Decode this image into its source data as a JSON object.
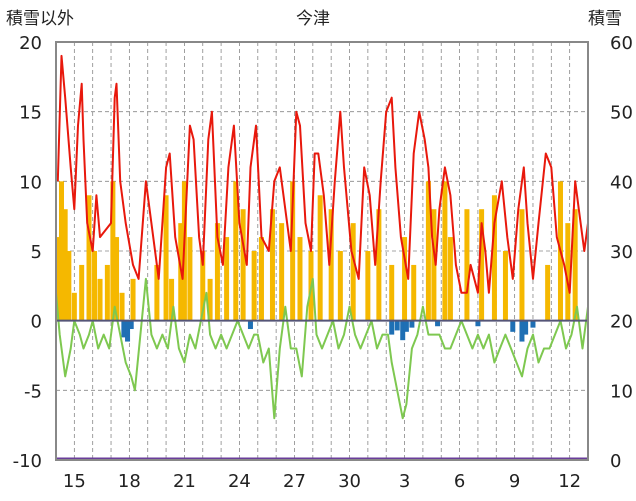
{
  "header": {
    "left_axis_label": "積雪以外",
    "title": "今津",
    "right_axis_label": "積雪"
  },
  "chart_data": {
    "type": "line",
    "title": "今津",
    "ylabel_left": "積雪以外",
    "ylabel_right": "積雪",
    "ylim_left": [
      -10,
      20
    ],
    "ylim_right": [
      0,
      60
    ],
    "yticks_left": [
      "20",
      "15",
      "10",
      "5",
      "0",
      "-5",
      "-10"
    ],
    "yticks_right": [
      "60",
      "50",
      "40",
      "30",
      "20",
      "10",
      "0"
    ],
    "xticks": [
      "15",
      "18",
      "21",
      "24",
      "27",
      "30",
      "3",
      "6",
      "9",
      "12"
    ],
    "grid": "dashed",
    "day_count": 29,
    "colors": {
      "temperature": "#e8180c",
      "precip_snow": "#f5b800",
      "temperature_other": "#7ec850",
      "snow_depth_bar": "#1f6fb4",
      "baseline": "#555577",
      "bottom_line": "#6a3d9a"
    },
    "series": [
      {
        "name": "",
        "axis": "left",
        "role": "yellow-bars",
        "color": "#f5b800",
        "values": [
          [
            0.1,
            6
          ],
          [
            0.3,
            10
          ],
          [
            0.5,
            8
          ],
          [
            0.7,
            5
          ],
          [
            1.0,
            2
          ],
          [
            1.4,
            4
          ],
          [
            1.8,
            9
          ],
          [
            2.1,
            5
          ],
          [
            2.4,
            3
          ],
          [
            2.8,
            4
          ],
          [
            3.1,
            10
          ],
          [
            3.3,
            6
          ],
          [
            3.6,
            2
          ],
          [
            4.2,
            3
          ],
          [
            5.5,
            4
          ],
          [
            6.0,
            9
          ],
          [
            6.3,
            3
          ],
          [
            6.8,
            7
          ],
          [
            7.0,
            10
          ],
          [
            7.3,
            6
          ],
          [
            8.0,
            5
          ],
          [
            8.4,
            3
          ],
          [
            8.8,
            7
          ],
          [
            9.3,
            6
          ],
          [
            9.8,
            10
          ],
          [
            10.2,
            8
          ],
          [
            10.8,
            5
          ],
          [
            11.2,
            6
          ],
          [
            11.8,
            8
          ],
          [
            12.3,
            7
          ],
          [
            12.9,
            10
          ],
          [
            13.3,
            6
          ],
          [
            13.9,
            5
          ],
          [
            14.4,
            9
          ],
          [
            15.0,
            8
          ],
          [
            15.5,
            5
          ],
          [
            16.2,
            7
          ],
          [
            17.0,
            5
          ],
          [
            17.6,
            8
          ],
          [
            18.3,
            4
          ],
          [
            19.0,
            6
          ],
          [
            19.5,
            4
          ],
          [
            20.3,
            10
          ],
          [
            20.6,
            8
          ],
          [
            21.2,
            10
          ],
          [
            21.5,
            6
          ],
          [
            22.4,
            8
          ],
          [
            23.2,
            8
          ],
          [
            23.9,
            9
          ],
          [
            24.5,
            5
          ],
          [
            25.4,
            8
          ],
          [
            26.8,
            4
          ],
          [
            27.5,
            10
          ],
          [
            27.9,
            7
          ],
          [
            28.3,
            8
          ]
        ]
      },
      {
        "name": "",
        "axis": "left",
        "role": "blue-bars",
        "color": "#1f6fb4",
        "values": [
          [
            3.7,
            -1.2
          ],
          [
            3.9,
            -1.5
          ],
          [
            4.1,
            -0.6
          ],
          [
            10.6,
            -0.6
          ],
          [
            18.3,
            -1.0
          ],
          [
            18.6,
            -0.7
          ],
          [
            18.9,
            -1.4
          ],
          [
            19.1,
            -0.8
          ],
          [
            19.4,
            -0.5
          ],
          [
            20.8,
            -0.4
          ],
          [
            23.0,
            -0.4
          ],
          [
            24.9,
            -0.8
          ],
          [
            25.4,
            -1.5
          ],
          [
            25.6,
            -1.0
          ],
          [
            26.0,
            -0.5
          ]
        ]
      },
      {
        "name": "",
        "axis": "left",
        "role": "red-line",
        "color": "#e8180c",
        "values": [
          [
            0.1,
            10
          ],
          [
            0.3,
            19
          ],
          [
            0.5,
            16
          ],
          [
            0.8,
            11
          ],
          [
            1.0,
            8
          ],
          [
            1.2,
            14
          ],
          [
            1.4,
            17
          ],
          [
            1.5,
            13
          ],
          [
            1.7,
            7
          ],
          [
            2.0,
            5
          ],
          [
            2.2,
            9
          ],
          [
            2.4,
            6
          ],
          [
            3.0,
            7
          ],
          [
            3.2,
            16
          ],
          [
            3.3,
            17
          ],
          [
            3.5,
            10
          ],
          [
            3.8,
            7
          ],
          [
            4.2,
            4
          ],
          [
            4.5,
            3
          ],
          [
            4.9,
            10
          ],
          [
            5.2,
            7
          ],
          [
            5.6,
            3
          ],
          [
            6.0,
            11
          ],
          [
            6.2,
            12
          ],
          [
            6.5,
            6
          ],
          [
            6.9,
            3
          ],
          [
            7.3,
            14
          ],
          [
            7.5,
            13
          ],
          [
            7.8,
            6
          ],
          [
            8.0,
            4
          ],
          [
            8.3,
            13
          ],
          [
            8.5,
            15
          ],
          [
            8.8,
            6
          ],
          [
            9.1,
            4
          ],
          [
            9.4,
            11
          ],
          [
            9.7,
            14
          ],
          [
            10.0,
            7
          ],
          [
            10.4,
            4
          ],
          [
            10.6,
            11
          ],
          [
            10.9,
            14
          ],
          [
            11.2,
            6
          ],
          [
            11.6,
            5
          ],
          [
            11.9,
            10
          ],
          [
            12.2,
            11
          ],
          [
            12.5,
            8
          ],
          [
            12.8,
            5
          ],
          [
            13.1,
            15
          ],
          [
            13.3,
            14
          ],
          [
            13.6,
            7
          ],
          [
            13.9,
            5
          ],
          [
            14.1,
            12
          ],
          [
            14.3,
            12
          ],
          [
            14.6,
            9
          ],
          [
            14.9,
            4
          ],
          [
            15.2,
            10
          ],
          [
            15.5,
            15
          ],
          [
            15.7,
            11
          ],
          [
            16.1,
            5
          ],
          [
            16.5,
            3
          ],
          [
            16.8,
            11
          ],
          [
            17.1,
            9
          ],
          [
            17.4,
            4
          ],
          [
            17.7,
            10
          ],
          [
            18.0,
            15
          ],
          [
            18.3,
            16
          ],
          [
            18.5,
            11
          ],
          [
            18.8,
            6
          ],
          [
            19.2,
            3
          ],
          [
            19.5,
            12
          ],
          [
            19.8,
            15
          ],
          [
            20.1,
            13
          ],
          [
            20.3,
            11
          ],
          [
            20.5,
            6
          ],
          [
            20.7,
            4
          ],
          [
            20.9,
            8
          ],
          [
            21.2,
            11
          ],
          [
            21.5,
            9
          ],
          [
            21.8,
            4
          ],
          [
            22.1,
            2
          ],
          [
            22.4,
            2
          ],
          [
            22.6,
            4
          ],
          [
            22.8,
            3
          ],
          [
            23.0,
            2
          ],
          [
            23.2,
            7
          ],
          [
            23.4,
            5
          ],
          [
            23.6,
            2
          ],
          [
            23.9,
            7
          ],
          [
            24.3,
            10
          ],
          [
            24.6,
            6
          ],
          [
            24.9,
            3
          ],
          [
            25.2,
            8
          ],
          [
            25.5,
            11
          ],
          [
            25.7,
            7
          ],
          [
            26.0,
            3
          ],
          [
            26.3,
            7
          ],
          [
            26.7,
            12
          ],
          [
            27.0,
            11
          ],
          [
            27.3,
            6
          ],
          [
            27.7,
            4
          ],
          [
            28.0,
            2
          ],
          [
            28.3,
            10
          ],
          [
            28.5,
            8
          ],
          [
            28.8,
            5
          ],
          [
            29.0,
            7
          ]
        ]
      },
      {
        "name": "",
        "axis": "left",
        "role": "green-line",
        "color": "#7ec850",
        "values": [
          [
            0.0,
            2
          ],
          [
            0.2,
            -1
          ],
          [
            0.5,
            -4
          ],
          [
            0.8,
            -2
          ],
          [
            1.0,
            0
          ],
          [
            1.3,
            -1
          ],
          [
            1.5,
            -2
          ],
          [
            1.8,
            -1
          ],
          [
            2.0,
            0
          ],
          [
            2.3,
            -2
          ],
          [
            2.6,
            -1
          ],
          [
            2.9,
            -2
          ],
          [
            3.2,
            1
          ],
          [
            3.5,
            -1
          ],
          [
            3.8,
            -3
          ],
          [
            4.1,
            -4
          ],
          [
            4.3,
            -5
          ],
          [
            4.6,
            -1
          ],
          [
            4.9,
            3
          ],
          [
            5.2,
            -1
          ],
          [
            5.5,
            -2
          ],
          [
            5.8,
            -1
          ],
          [
            6.1,
            -2
          ],
          [
            6.4,
            1
          ],
          [
            6.7,
            -2
          ],
          [
            7.0,
            -3
          ],
          [
            7.3,
            -1
          ],
          [
            7.6,
            -2
          ],
          [
            7.9,
            0
          ],
          [
            8.2,
            2
          ],
          [
            8.4,
            -1
          ],
          [
            8.7,
            -2
          ],
          [
            9.0,
            -1
          ],
          [
            9.3,
            -2
          ],
          [
            9.6,
            -1
          ],
          [
            9.9,
            0
          ],
          [
            10.2,
            -1
          ],
          [
            10.5,
            -2
          ],
          [
            10.8,
            -1
          ],
          [
            11.0,
            -1
          ],
          [
            11.3,
            -3
          ],
          [
            11.6,
            -2
          ],
          [
            11.9,
            -7
          ],
          [
            12.2,
            -2
          ],
          [
            12.5,
            1
          ],
          [
            12.8,
            -2
          ],
          [
            13.1,
            -2
          ],
          [
            13.4,
            -4
          ],
          [
            13.7,
            1
          ],
          [
            14.0,
            3
          ],
          [
            14.2,
            -1
          ],
          [
            14.5,
            -2
          ],
          [
            14.8,
            -1
          ],
          [
            15.1,
            0
          ],
          [
            15.4,
            -2
          ],
          [
            15.7,
            -1
          ],
          [
            16.0,
            1
          ],
          [
            16.3,
            -1
          ],
          [
            16.6,
            -2
          ],
          [
            16.9,
            -1
          ],
          [
            17.2,
            0
          ],
          [
            17.5,
            -2
          ],
          [
            17.8,
            -1
          ],
          [
            18.1,
            -1
          ],
          [
            18.3,
            -3
          ],
          [
            18.6,
            -5
          ],
          [
            18.9,
            -7
          ],
          [
            19.1,
            -6
          ],
          [
            19.4,
            -2
          ],
          [
            19.7,
            -1
          ],
          [
            20.0,
            1
          ],
          [
            20.3,
            -1
          ],
          [
            20.6,
            -1
          ],
          [
            20.9,
            -1
          ],
          [
            21.2,
            -2
          ],
          [
            21.5,
            -2
          ],
          [
            21.8,
            -1
          ],
          [
            22.1,
            0
          ],
          [
            22.4,
            -1
          ],
          [
            22.7,
            -2
          ],
          [
            23.0,
            -1
          ],
          [
            23.3,
            -2
          ],
          [
            23.6,
            -1
          ],
          [
            23.9,
            -3
          ],
          [
            24.2,
            -2
          ],
          [
            24.5,
            -1
          ],
          [
            24.8,
            -2
          ],
          [
            25.1,
            -3
          ],
          [
            25.4,
            -4
          ],
          [
            25.7,
            -2
          ],
          [
            26.0,
            -1
          ],
          [
            26.3,
            -3
          ],
          [
            26.6,
            -2
          ],
          [
            26.9,
            -2
          ],
          [
            27.2,
            -1
          ],
          [
            27.5,
            0
          ],
          [
            27.8,
            -2
          ],
          [
            28.1,
            -1
          ],
          [
            28.4,
            1
          ],
          [
            28.7,
            -2
          ],
          [
            29.0,
            1
          ]
        ]
      }
    ]
  }
}
